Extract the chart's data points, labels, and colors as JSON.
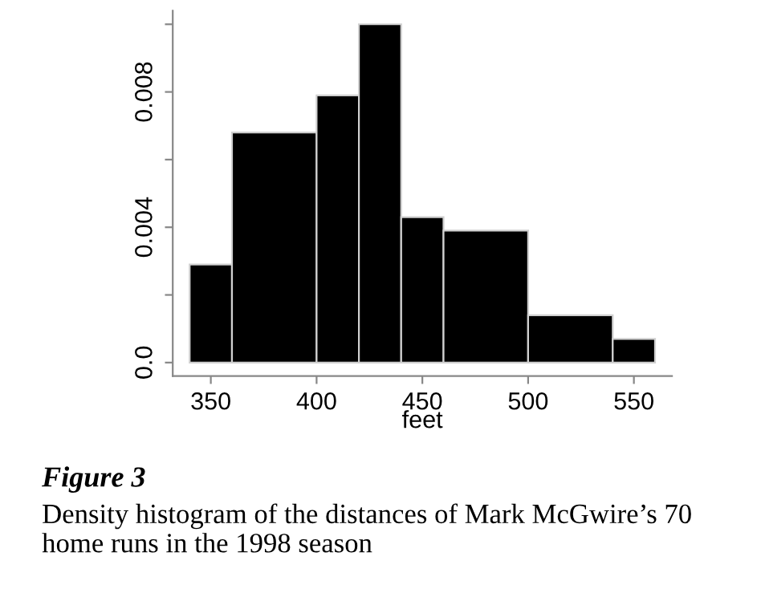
{
  "chart_data": {
    "type": "histogram",
    "xlabel": "feet",
    "bins": [
      340,
      360,
      400,
      420,
      440,
      460,
      500,
      540,
      560
    ],
    "values": [
      0.0029,
      0.0068,
      0.0079,
      0.01,
      0.0043,
      0.0039,
      0.0014,
      0.0007
    ],
    "color": "#000000",
    "xlim": [
      332,
      568
    ],
    "ylim": [
      -0.0004,
      0.0104
    ],
    "xticks": [
      350,
      400,
      450,
      500,
      550
    ],
    "yticks": [
      {
        "value": 0,
        "label": "0.0"
      },
      {
        "value": 0.002,
        "label": null
      },
      {
        "value": 0.004,
        "label": "0.004"
      },
      {
        "value": 0.006,
        "label": null
      },
      {
        "value": 0.008,
        "label": "0.008"
      },
      {
        "value": 0.01,
        "label": null
      }
    ],
    "grid": false,
    "legend": false,
    "annotations": [
      "Figure 3",
      "Density histogram of the distances of Mark McGwire’s 70 home runs in the 1998 season"
    ]
  }
}
